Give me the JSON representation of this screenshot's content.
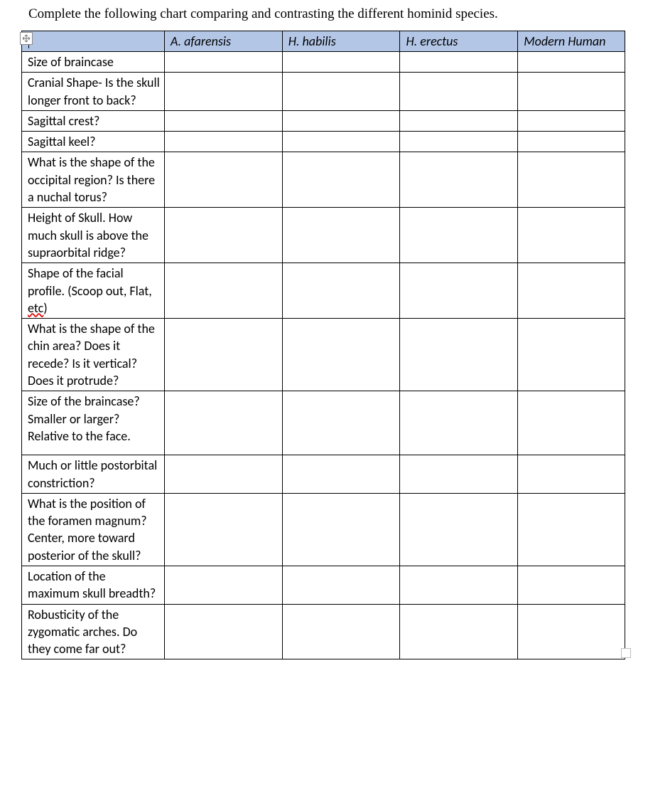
{
  "instruction": "Complete the following chart comparing and contrasting the different hominid species.",
  "table": {
    "header_bg": "#b3c6e6",
    "border_color": "#000000",
    "columns": [
      {
        "label": ""
      },
      {
        "label": "A. afarensis"
      },
      {
        "label": "H. habilis"
      },
      {
        "label": "H. erectus"
      },
      {
        "label": "Modern Human"
      }
    ],
    "rows": [
      {
        "label": "Size of braincase",
        "cells": [
          "",
          "",
          "",
          ""
        ]
      },
      {
        "label": "Cranial Shape- Is the skull longer front to back?",
        "cells": [
          "",
          "",
          "",
          ""
        ]
      },
      {
        "label": "Sagittal crest?",
        "cells": [
          "",
          "",
          "",
          ""
        ]
      },
      {
        "label": "Sagittal keel?",
        "cells": [
          "",
          "",
          "",
          ""
        ]
      },
      {
        "label": "What is the shape of the occipital region? Is there a nuchal torus?",
        "cells": [
          "",
          "",
          "",
          ""
        ]
      },
      {
        "label": "Height of Skull.  How much skull is above the supraorbital ridge?",
        "cells": [
          "",
          "",
          "",
          ""
        ]
      },
      {
        "label_pre": "Shape of the facial profile. (Scoop out, Flat, ",
        "label_etc": "etc",
        "label_post": ")",
        "cells": [
          "",
          "",
          "",
          ""
        ]
      },
      {
        "label": "What is the shape of the chin area?  Does it recede? Is it vertical?  Does it protrude?",
        "cells": [
          "",
          "",
          "",
          ""
        ]
      },
      {
        "label": "Size of the braincase? Smaller or larger? Relative to the face.",
        "extra_padding": true,
        "cells": [
          "",
          "",
          "",
          ""
        ]
      },
      {
        "label": "Much or little postorbital constriction?",
        "cells": [
          "",
          "",
          "",
          ""
        ]
      },
      {
        "label": "What is the position of the foramen magnum?  Center, more toward posterior of the skull?",
        "cells": [
          "",
          "",
          "",
          ""
        ]
      },
      {
        "label": "Location of the maximum skull breadth?",
        "cells": [
          "",
          "",
          "",
          ""
        ]
      },
      {
        "label": "Robusticity of the zygomatic arches. Do they come far out?",
        "cells": [
          "",
          "",
          "",
          ""
        ]
      }
    ]
  },
  "icons": {
    "anchor": "table-anchor-icon",
    "end_marker": "section-end-marker"
  }
}
